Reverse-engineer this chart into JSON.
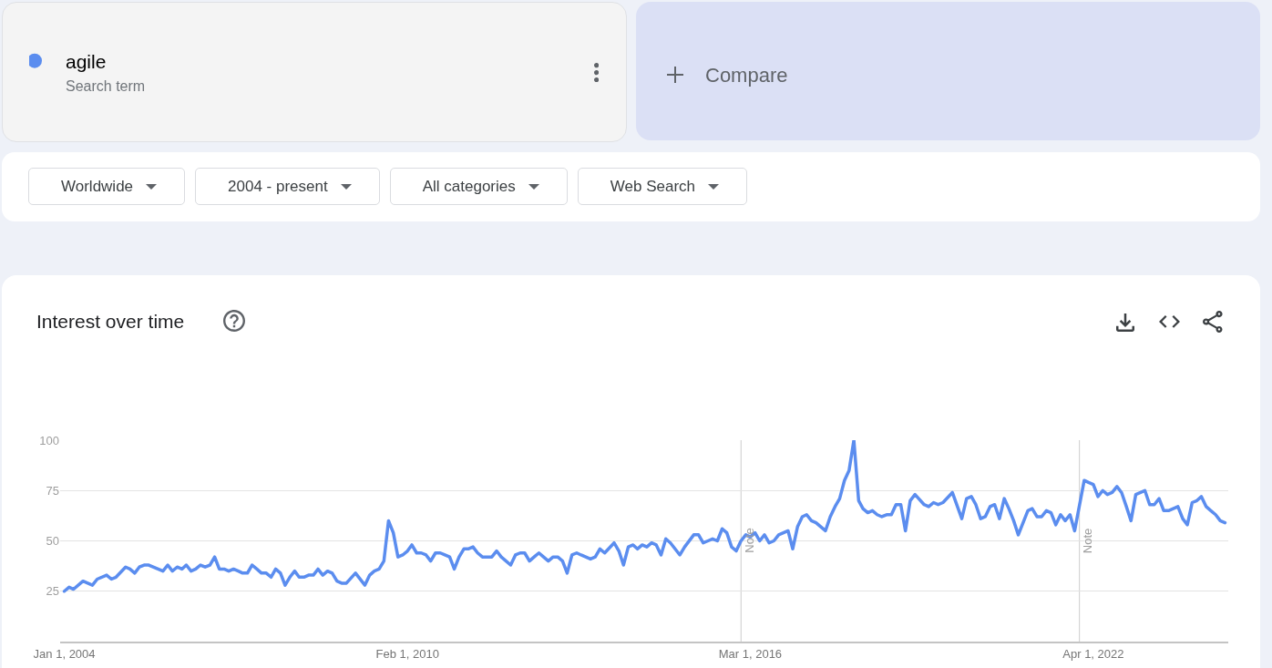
{
  "chart_data": {
    "type": "line",
    "title": "Interest over time",
    "annotations": [
      "Search term",
      "Compare",
      "Worldwide",
      "2004 - present",
      "All categories",
      "Web Search"
    ],
    "x": [
      "2004-01",
      "2004-02",
      "2004-03",
      "2004-05",
      "2004-07",
      "2004-08",
      "2004-10",
      "2004-11",
      "2004-12",
      "2005-02",
      "2005-03",
      "2005-04",
      "2005-05",
      "2005-06",
      "2005-07",
      "2005-10",
      "2005-11",
      "2005-12",
      "2006-01",
      "2006-02",
      "2006-03",
      "2006-04",
      "2006-05",
      "2006-06",
      "2006-07",
      "2006-08",
      "2006-09",
      "2006-10",
      "2006-11",
      "2006-12",
      "2007-01",
      "2007-02",
      "2007-03",
      "2007-04",
      "2007-05",
      "2007-06",
      "2007-07",
      "2007-08",
      "2007-09",
      "2007-10",
      "2007-11",
      "2007-12",
      "2008-01",
      "2008-02",
      "2008-03",
      "2008-04",
      "2008-05",
      "2008-06",
      "2008-07",
      "2008-08",
      "2008-09",
      "2008-10",
      "2008-11",
      "2008-12",
      "2009-01",
      "2009-03",
      "2009-05",
      "2009-06",
      "2009-07",
      "2009-08",
      "2009-09",
      "2009-10",
      "2009-11",
      "2009-12",
      "2010-01",
      "2010-02",
      "2010-03",
      "2010-04",
      "2010-05",
      "2010-06",
      "2010-07",
      "2010-08",
      "2010-09",
      "2010-10",
      "2010-11",
      "2010-12",
      "2011-01",
      "2011-02",
      "2011-03",
      "2011-04",
      "2011-05",
      "2011-06",
      "2011-08",
      "2011-09",
      "2011-10",
      "2011-11",
      "2011-12",
      "2012-01",
      "2012-02",
      "2012-03",
      "2012-04",
      "2012-05",
      "2012-06",
      "2012-07",
      "2012-08",
      "2012-09",
      "2012-10",
      "2012-11",
      "2012-12",
      "2013-01",
      "2013-02",
      "2013-03",
      "2013-05",
      "2013-06",
      "2013-07",
      "2013-08",
      "2013-10",
      "2013-11",
      "2013-12",
      "2014-01",
      "2014-02",
      "2014-03",
      "2014-04",
      "2014-05",
      "2014-06",
      "2014-07",
      "2014-08",
      "2014-09",
      "2014-10",
      "2014-12",
      "2015-01",
      "2015-03",
      "2015-04",
      "2015-05",
      "2015-06",
      "2015-07",
      "2015-08",
      "2015-09",
      "2015-10",
      "2015-11",
      "2015-12",
      "2016-01",
      "2016-02",
      "2016-03",
      "2016-04",
      "2016-05",
      "2016-06",
      "2016-07",
      "2016-08",
      "2016-09",
      "2016-11",
      "2016-12",
      "2017-01",
      "2017-02",
      "2017-03",
      "2017-04",
      "2017-05",
      "2017-07",
      "2017-08",
      "2017-09",
      "2017-10",
      "2017-11",
      "2017-12",
      "2018-01",
      "2018-02",
      "2018-03",
      "2018-04",
      "2018-05",
      "2018-06",
      "2018-07",
      "2018-08",
      "2018-09",
      "2018-10",
      "2018-11",
      "2018-12",
      "2019-01",
      "2019-02",
      "2019-04",
      "2019-05",
      "2019-06",
      "2019-07",
      "2019-08",
      "2019-10",
      "2019-12",
      "2020-01",
      "2020-02",
      "2020-03",
      "2020-04",
      "2020-05",
      "2020-06",
      "2020-07",
      "2020-08",
      "2020-09",
      "2020-10",
      "2020-11",
      "2020-12",
      "2021-01",
      "2021-02",
      "2021-03",
      "2021-04",
      "2021-05",
      "2021-06",
      "2021-07",
      "2021-08",
      "2021-09",
      "2021-10",
      "2021-11",
      "2021-12",
      "2022-02",
      "2022-03",
      "2022-04",
      "2022-05",
      "2022-06",
      "2022-07",
      "2022-08",
      "2022-09",
      "2022-10",
      "2022-11",
      "2022-12",
      "2023-01",
      "2023-02",
      "2023-03",
      "2023-04",
      "2023-05",
      "2023-06",
      "2023-07",
      "2023-08",
      "2023-10",
      "2023-11",
      "2023-12",
      "2024-01",
      "2024-02",
      "2024-03",
      "2024-04",
      "2024-05",
      "2024-06",
      "2024-07",
      "2024-08"
    ],
    "series": [
      {
        "name": "agile",
        "color": "#5b8def",
        "values": [
          25,
          27,
          26,
          30,
          28,
          31,
          33,
          31,
          32,
          37,
          36,
          34,
          37,
          38,
          38,
          35,
          38,
          35,
          37,
          36,
          38,
          35,
          36,
          38,
          37,
          38,
          42,
          36,
          36,
          35,
          36,
          35,
          34,
          34,
          38,
          36,
          34,
          34,
          32,
          36,
          34,
          28,
          32,
          35,
          32,
          32,
          33,
          33,
          36,
          33,
          35,
          34,
          30,
          29,
          29,
          34,
          28,
          33,
          35,
          36,
          40,
          60,
          54,
          42,
          43,
          45,
          48,
          44,
          44,
          43,
          40,
          44,
          44,
          43,
          42,
          36,
          42,
          46,
          46,
          47,
          44,
          42,
          42,
          45,
          42,
          40,
          38,
          43,
          44,
          44,
          40,
          42,
          44,
          42,
          40,
          42,
          42,
          40,
          34,
          43,
          44,
          43,
          41,
          42,
          46,
          44,
          49,
          45,
          38,
          47,
          48,
          46,
          48,
          47,
          49,
          48,
          43,
          51,
          49,
          43,
          47,
          53,
          53,
          49,
          50,
          51,
          50,
          56,
          54,
          47,
          45,
          50,
          53,
          52,
          54,
          50,
          53,
          49,
          50,
          53,
          55,
          46,
          57,
          62,
          63,
          60,
          59,
          55,
          62,
          67,
          71,
          80,
          85,
          100,
          70,
          66,
          64,
          65,
          63,
          62,
          63,
          63,
          68,
          68,
          55,
          70,
          73,
          68,
          67,
          69,
          68,
          69,
          74,
          61,
          71,
          72,
          68,
          61,
          62,
          67,
          68,
          61,
          71,
          66,
          60,
          53,
          59,
          65,
          66,
          62,
          62,
          65,
          64,
          58,
          63,
          60,
          63,
          55,
          80,
          79,
          78,
          72,
          75,
          73,
          74,
          77,
          74,
          67,
          60,
          73,
          74,
          75,
          68,
          68,
          71,
          65,
          65,
          67,
          61,
          58,
          69,
          70,
          72,
          67,
          65,
          63,
          60,
          59
        ]
      }
    ],
    "xlim": [
      "2003-12-05",
      "2024-08-22"
    ],
    "ylim": [
      0,
      100
    ],
    "xticks": [
      {
        "value": "2004-01-01",
        "label": "Jan 1, 2004"
      },
      {
        "value": "2010-02-01",
        "label": "Feb 1, 2010"
      },
      {
        "value": "2016-03-01",
        "label": "Mar 1, 2016"
      },
      {
        "value": "2022-04-01",
        "label": "Apr 1, 2022"
      }
    ],
    "yticks": [
      25,
      50,
      75,
      100
    ],
    "grid": "y",
    "legend": "top left",
    "ref_lines": [
      {
        "axis": "x",
        "value": "2016-01-01",
        "label": "Note",
        "color": "#cccccc"
      },
      {
        "axis": "x",
        "value": "2022-01-01",
        "label": "Note",
        "color": "#cccccc"
      }
    ]
  }
}
